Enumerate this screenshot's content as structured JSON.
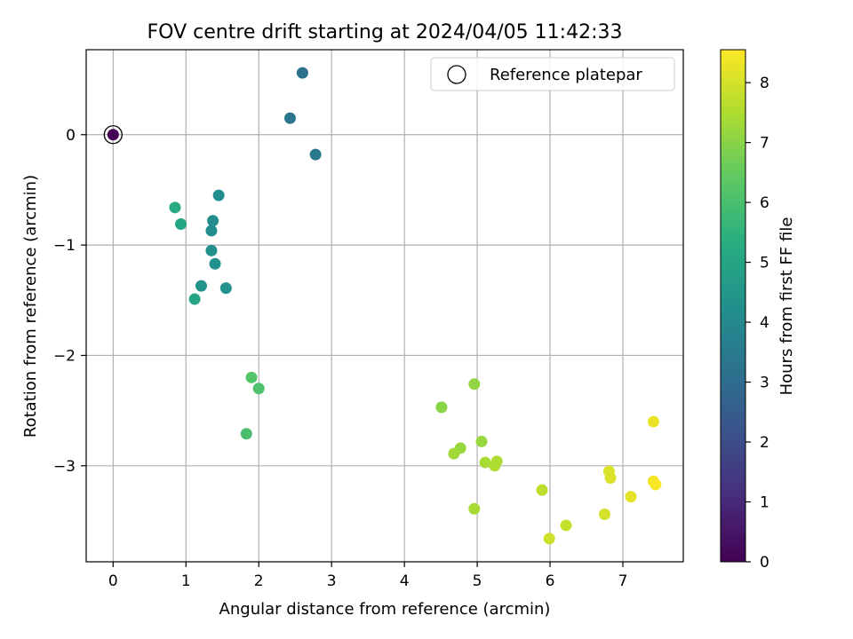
{
  "chart_data": {
    "type": "scatter",
    "title": "FOV centre drift starting at 2024/04/05 11:42:33",
    "xlabel": "Angular distance from reference (arcmin)",
    "ylabel": "Rotation from reference (arcmin)",
    "xlim": [
      -0.37,
      7.83
    ],
    "ylim": [
      -3.87,
      0.77
    ],
    "xticks": [
      0,
      1,
      2,
      3,
      4,
      5,
      6,
      7
    ],
    "yticks": [
      0,
      -1,
      -2,
      -3
    ],
    "ytick_labels": [
      "0",
      "−1",
      "−2",
      "−3"
    ],
    "grid": true,
    "colormap": "viridis",
    "color_range": [
      0,
      8.55
    ],
    "colorbar": {
      "label": "Hours from first FF file",
      "ticks": [
        0,
        1,
        2,
        3,
        4,
        5,
        6,
        7,
        8
      ]
    },
    "legend": {
      "placement": "top-right",
      "entries": [
        {
          "label": "Reference platepar",
          "marker": "open-circle"
        }
      ]
    },
    "reference_point": {
      "x": 0,
      "y": 0
    },
    "points": [
      {
        "x": 0.0,
        "y": 0.0,
        "hours": 0.0
      },
      {
        "x": 2.6,
        "y": 0.56,
        "hours": 3.2
      },
      {
        "x": 2.43,
        "y": 0.15,
        "hours": 3.3
      },
      {
        "x": 2.78,
        "y": -0.18,
        "hours": 3.4
      },
      {
        "x": 1.45,
        "y": -0.55,
        "hours": 4.2
      },
      {
        "x": 0.85,
        "y": -0.66,
        "hours": 5.2
      },
      {
        "x": 1.37,
        "y": -0.78,
        "hours": 4.1
      },
      {
        "x": 0.93,
        "y": -0.81,
        "hours": 5.1
      },
      {
        "x": 1.35,
        "y": -0.87,
        "hours": 4.1
      },
      {
        "x": 1.35,
        "y": -1.05,
        "hours": 4.2
      },
      {
        "x": 1.4,
        "y": -1.17,
        "hours": 4.3
      },
      {
        "x": 1.21,
        "y": -1.37,
        "hours": 4.4
      },
      {
        "x": 1.55,
        "y": -1.39,
        "hours": 4.3
      },
      {
        "x": 1.12,
        "y": -1.49,
        "hours": 5.0
      },
      {
        "x": 1.9,
        "y": -2.2,
        "hours": 6.2
      },
      {
        "x": 2.0,
        "y": -2.3,
        "hours": 6.1
      },
      {
        "x": 1.83,
        "y": -2.71,
        "hours": 6.0
      },
      {
        "x": 4.51,
        "y": -2.47,
        "hours": 7.0
      },
      {
        "x": 4.96,
        "y": -2.26,
        "hours": 7.1
      },
      {
        "x": 5.06,
        "y": -2.78,
        "hours": 7.2
      },
      {
        "x": 4.77,
        "y": -2.84,
        "hours": 7.2
      },
      {
        "x": 4.68,
        "y": -2.89,
        "hours": 7.3
      },
      {
        "x": 5.11,
        "y": -2.97,
        "hours": 7.4
      },
      {
        "x": 5.27,
        "y": -2.96,
        "hours": 7.5
      },
      {
        "x": 5.24,
        "y": -3.0,
        "hours": 7.5
      },
      {
        "x": 4.96,
        "y": -3.39,
        "hours": 7.4
      },
      {
        "x": 5.89,
        "y": -3.22,
        "hours": 7.7
      },
      {
        "x": 6.22,
        "y": -3.54,
        "hours": 7.8
      },
      {
        "x": 5.99,
        "y": -3.66,
        "hours": 7.9
      },
      {
        "x": 6.75,
        "y": -3.44,
        "hours": 8.0
      },
      {
        "x": 6.81,
        "y": -3.05,
        "hours": 8.1
      },
      {
        "x": 6.83,
        "y": -3.11,
        "hours": 8.1
      },
      {
        "x": 7.11,
        "y": -3.28,
        "hours": 8.2
      },
      {
        "x": 7.42,
        "y": -2.6,
        "hours": 8.3
      },
      {
        "x": 7.42,
        "y": -3.14,
        "hours": 8.4
      },
      {
        "x": 7.45,
        "y": -3.17,
        "hours": 8.5
      }
    ]
  }
}
